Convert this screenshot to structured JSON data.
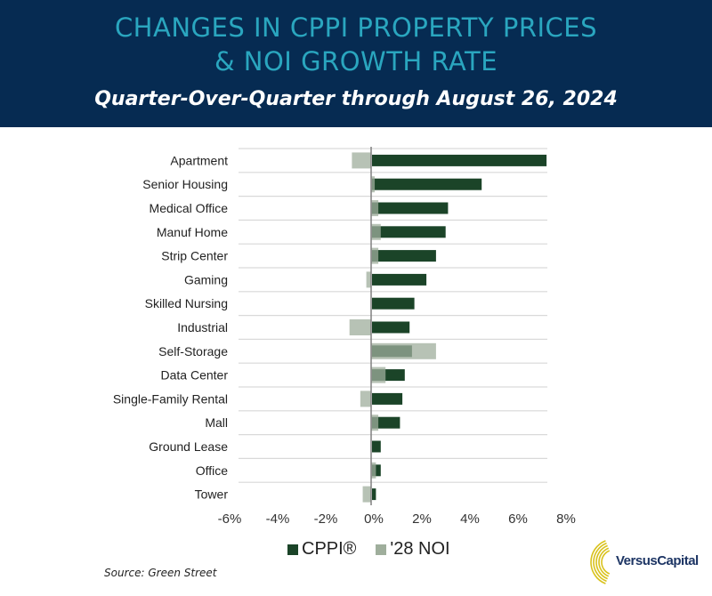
{
  "header": {
    "title_line1": "CHANGES IN CPPI PROPERTY PRICES",
    "title_line2": "& NOI GROWTH RATE",
    "subtitle": "Quarter-Over-Quarter through August 26, 2024"
  },
  "colors": {
    "header_bg": "#062b52",
    "title": "#2aa6bf",
    "cppi": "#1b4428",
    "noi": "#9fae9c",
    "logo_arc": "#d9c21d",
    "logo_text": "#1d3564"
  },
  "chart_data": {
    "type": "bar",
    "orientation": "horizontal",
    "title": "Changes in CPPI Property Prices & NOI Growth Rate",
    "subtitle": "Quarter-Over-Quarter through August 26, 2024",
    "xlabel": "",
    "ylabel": "",
    "categories": [
      "Apartment",
      "Senior Housing",
      "Medical Office",
      "Manuf Home",
      "Strip Center",
      "Gaming",
      "Skilled Nursing",
      "Industrial",
      "Self-Storage",
      "Data Center",
      "Single-Family Rental",
      "Mall",
      "Ground Lease",
      "Office",
      "Tower"
    ],
    "series": [
      {
        "name": "CPPI®",
        "values": [
          7.3,
          4.6,
          3.2,
          3.1,
          2.7,
          2.3,
          1.8,
          1.6,
          1.7,
          1.4,
          1.3,
          1.2,
          0.4,
          0.4,
          0.2
        ]
      },
      {
        "name": "'28 NOI",
        "values": [
          -0.8,
          0.15,
          0.3,
          0.4,
          0.3,
          -0.2,
          0.0,
          -0.9,
          2.7,
          0.6,
          -0.45,
          0.3,
          0.0,
          0.2,
          -0.35
        ]
      }
    ],
    "xlim": [
      -6,
      8
    ],
    "xticks": [
      -6,
      -4,
      -2,
      0,
      2,
      4,
      6,
      8
    ],
    "xtick_labels": [
      "-6%",
      "-4%",
      "-2%",
      "0%",
      "2%",
      "4%",
      "6%",
      "8%"
    ],
    "grid": "horizontal separators between categories",
    "legend": {
      "position": "bottom-center",
      "entries": [
        "CPPI®",
        "'28 NOI"
      ]
    }
  },
  "footer": {
    "source": "Source: Green Street",
    "logo_text": "VersusCapital"
  }
}
